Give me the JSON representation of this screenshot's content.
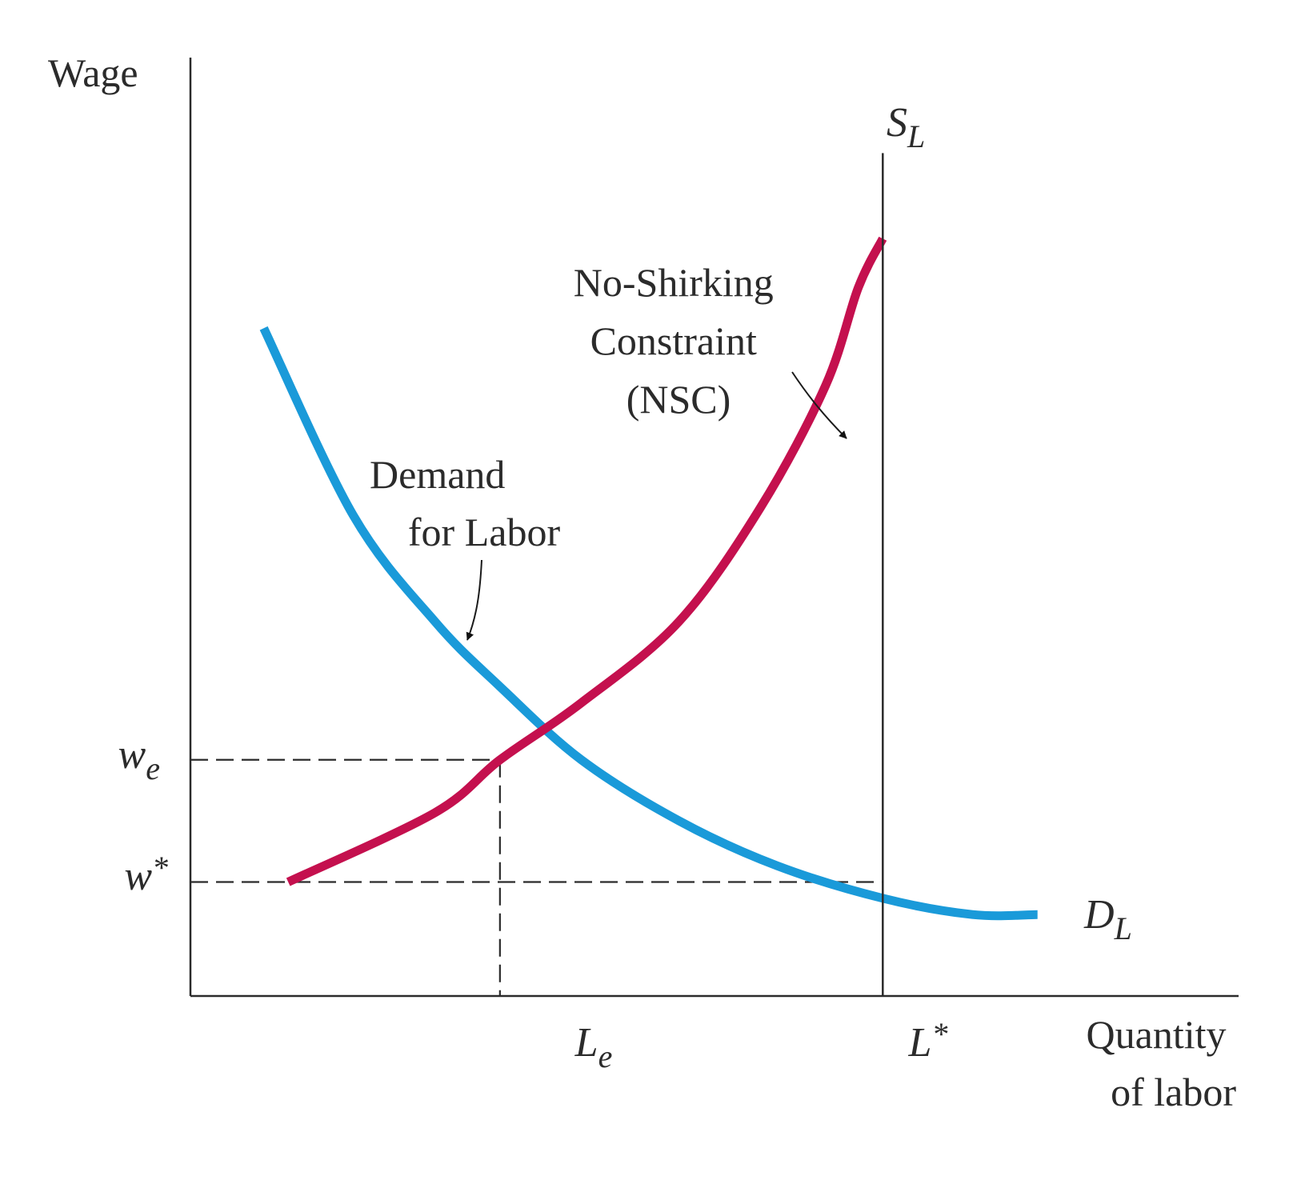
{
  "chart_data": {
    "type": "line",
    "title": "",
    "ylabel": "Wage",
    "xlabel_lines": [
      "Quantity",
      "of labor"
    ],
    "x_ticks": [
      {
        "id": "Le",
        "main": "L",
        "sub": "e",
        "sup": ""
      },
      {
        "id": "Lstar",
        "main": "L",
        "sub": "",
        "sup": "*"
      }
    ],
    "y_ticks": [
      {
        "id": "we",
        "main": "w",
        "sub": "e",
        "sup": ""
      },
      {
        "id": "wstar",
        "main": "w",
        "sub": "",
        "sup": "*"
      }
    ],
    "series": [
      {
        "id": "demand",
        "color": "#1a9ad9",
        "label_main": "D",
        "label_sub": "L",
        "annotation_lines": [
          "Demand",
          "for Labor"
        ],
        "x": [
          0.09,
          0.2,
          0.3,
          0.38,
          0.48,
          0.6,
          0.72,
          0.85,
          0.96,
          1.04
        ],
        "y": [
          0.82,
          0.59,
          0.46,
          0.38,
          0.29,
          0.215,
          0.16,
          0.12,
          0.1,
          0.1
        ]
      },
      {
        "id": "nsc",
        "color": "#c4104e",
        "annotation_lines": [
          "No-Shirking",
          "Constraint",
          "(NSC)"
        ],
        "x": [
          0.12,
          0.3,
          0.38,
          0.48,
          0.6,
          0.7,
          0.78,
          0.82,
          0.85
        ],
        "y": [
          0.14,
          0.225,
          0.29,
          0.36,
          0.46,
          0.6,
          0.75,
          0.87,
          0.93
        ]
      },
      {
        "id": "supply",
        "color": "#2b2b2b",
        "label_main": "S",
        "label_sub": "L",
        "x": [
          0.85,
          0.85
        ],
        "y": [
          0,
          1.035
        ]
      }
    ],
    "equilibrium": {
      "x_tick": "Le",
      "y_tick": "we",
      "x": 0.38,
      "y": 0.29
    },
    "full_employment": {
      "x_tick": "Lstar",
      "y_tick": "wstar",
      "x": 0.85,
      "y": 0.14
    },
    "xlim": [
      0,
      1.25
    ],
    "ylim": [
      0,
      1.25
    ],
    "grid": false,
    "legend": "none"
  }
}
